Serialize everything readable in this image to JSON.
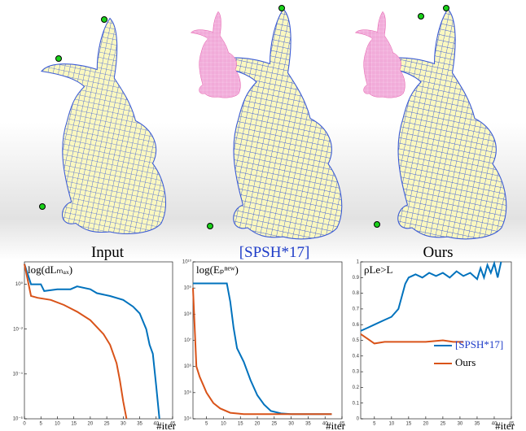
{
  "labels": [
    "Input",
    "[SPSH*17]",
    "Ours"
  ],
  "chart_data": [
    {
      "type": "line",
      "title": "log(dLₘₐₓ)",
      "xlabel": "#iter",
      "yscale": "log",
      "xlim": [
        0,
        45
      ],
      "xticks": [
        0,
        5,
        10,
        15,
        20,
        25,
        30,
        35,
        40,
        45
      ],
      "ylim": [
        1e-06,
        10
      ],
      "yticks": [
        {
          "value": 1e-06,
          "label": "10⁻⁶"
        },
        {
          "value": 0.0001,
          "label": "10⁻⁴"
        },
        {
          "value": 0.01,
          "label": "10⁻²"
        },
        {
          "value": 1,
          "label": "10⁰"
        }
      ],
      "series": [
        {
          "name": "[SPSH*17]",
          "color": "#0072bd",
          "x": [
            0,
            2,
            5,
            6,
            10,
            14,
            16,
            20,
            22,
            26,
            30,
            33,
            35,
            37,
            38,
            39,
            40,
            41
          ],
          "values": [
            8,
            1,
            1,
            0.5,
            0.6,
            0.6,
            0.8,
            0.6,
            0.4,
            0.3,
            0.2,
            0.1,
            0.05,
            0.01,
            0.002,
            0.0008,
            3e-05,
            1e-06
          ]
        },
        {
          "name": "Ours",
          "color": "#d95319",
          "x": [
            0,
            2,
            4,
            8,
            12,
            16,
            20,
            24,
            26,
            28,
            29,
            30,
            31
          ],
          "values": [
            8,
            0.3,
            0.25,
            0.2,
            0.12,
            0.06,
            0.025,
            0.006,
            0.002,
            0.0003,
            5e-05,
            6e-06,
            1e-06
          ]
        }
      ]
    },
    {
      "type": "line",
      "title": "log(Eₚⁿᵉʷ)",
      "xlabel": "#iter",
      "yscale": "log",
      "xlim": [
        1,
        45
      ],
      "xticks": [
        5,
        10,
        15,
        20,
        25,
        30,
        35,
        40,
        45
      ],
      "ylim": [
        10000,
        10000000000
      ],
      "yticks": [
        {
          "value": 10000,
          "label": "10⁴"
        },
        {
          "value": 100000,
          "label": "10⁵"
        },
        {
          "value": 1000000,
          "label": "10⁶"
        },
        {
          "value": 10000000,
          "label": "10⁷"
        },
        {
          "value": 100000000,
          "label": "10⁸"
        },
        {
          "value": 1000000000,
          "label": "10⁹"
        },
        {
          "value": 10000000000,
          "label": "10¹⁰"
        }
      ],
      "series": [
        {
          "name": "[SPSH*17]",
          "color": "#0072bd",
          "x": [
            1,
            5,
            11,
            12,
            13,
            14,
            16,
            18,
            20,
            22,
            24,
            27,
            30,
            42
          ],
          "values": [
            1500000000,
            1500000000,
            1500000000,
            300000000,
            30000000,
            5000000,
            1500000,
            300000,
            80000,
            35000,
            20000,
            16000,
            15000,
            15000
          ]
        },
        {
          "name": "Ours",
          "color": "#d95319",
          "x": [
            1,
            2,
            3,
            4,
            5,
            7,
            9,
            12,
            16,
            25,
            42
          ],
          "values": [
            1000000000,
            1000000,
            400000,
            200000,
            100000,
            40000,
            25000,
            17000,
            15000,
            15000,
            15000
          ]
        }
      ]
    },
    {
      "type": "line",
      "title": "ρLe>L",
      "xlabel": "#iter",
      "yscale": "linear",
      "xlim": [
        1,
        45
      ],
      "xticks": [
        5,
        10,
        15,
        20,
        25,
        30,
        35,
        40,
        45
      ],
      "ylim": [
        0,
        1
      ],
      "yticks": [
        0,
        0.1,
        0.2,
        0.3,
        0.4,
        0.5,
        0.6,
        0.7,
        0.8,
        0.9,
        1
      ],
      "legend": "lower right",
      "series": [
        {
          "name": "[SPSH*17]",
          "color": "#0072bd",
          "x": [
            1,
            3,
            5,
            8,
            10,
            12,
            13,
            14,
            15,
            17,
            19,
            21,
            23,
            25,
            27,
            29,
            31,
            33,
            35,
            36,
            37,
            38,
            39,
            40,
            41,
            42
          ],
          "values": [
            0.56,
            0.58,
            0.6,
            0.63,
            0.65,
            0.7,
            0.78,
            0.86,
            0.9,
            0.92,
            0.9,
            0.93,
            0.91,
            0.93,
            0.9,
            0.94,
            0.91,
            0.93,
            0.89,
            0.96,
            0.9,
            0.98,
            0.93,
            0.99,
            0.9,
            1
          ]
        },
        {
          "name": "Ours",
          "color": "#d95319",
          "x": [
            1,
            3,
            5,
            8,
            10,
            15,
            20,
            25,
            28,
            31
          ],
          "values": [
            0.54,
            0.51,
            0.48,
            0.49,
            0.49,
            0.49,
            0.49,
            0.5,
            0.49,
            0.49
          ]
        }
      ]
    }
  ]
}
